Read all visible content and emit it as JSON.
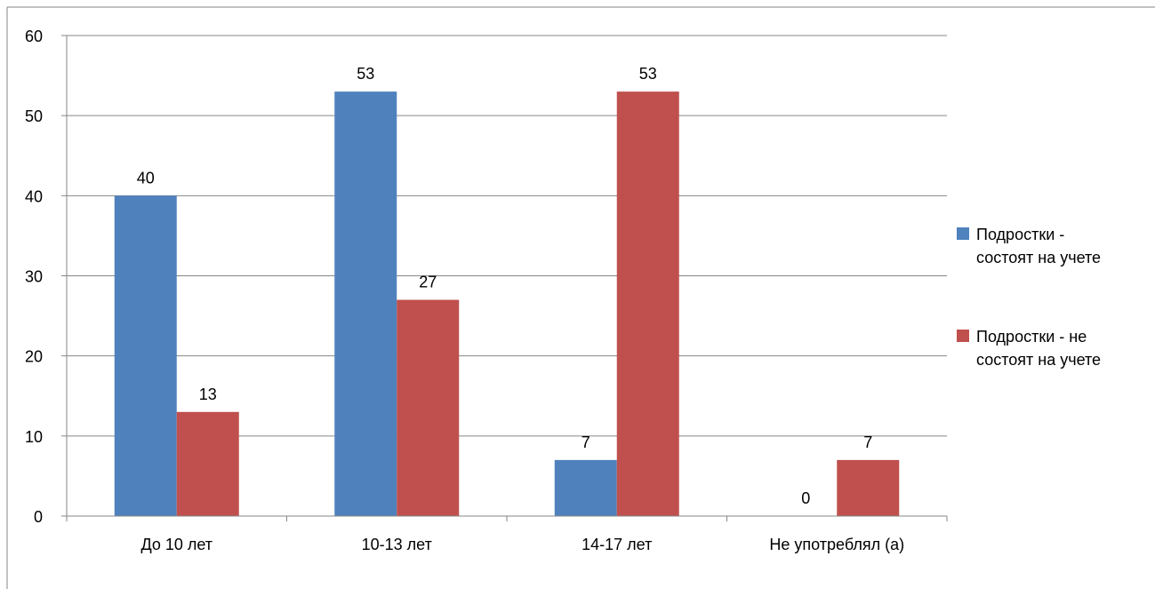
{
  "chart_data": {
    "type": "bar",
    "title": "",
    "xlabel": "",
    "ylabel": "",
    "categories": [
      "До 10 лет",
      "10-13 лет",
      "14-17 лет",
      "Не употреблял (а)"
    ],
    "series": [
      {
        "name": "Подростки - состоят на учете",
        "legend_lines": [
          "Подростки -",
          "состоят на учете"
        ],
        "color": "#4F81BD",
        "values": [
          40,
          53,
          7,
          0
        ]
      },
      {
        "name": "Подростки - не состоят на учете",
        "legend_lines": [
          "Подростки - не",
          "состоят на учете"
        ],
        "color": "#C0504D",
        "values": [
          13,
          27,
          53,
          7
        ]
      }
    ],
    "ylim": [
      0,
      60
    ],
    "yticks": [
      0,
      10,
      20,
      30,
      40,
      50,
      60
    ],
    "grid": true,
    "data_labels": true,
    "legend_position": "right"
  }
}
